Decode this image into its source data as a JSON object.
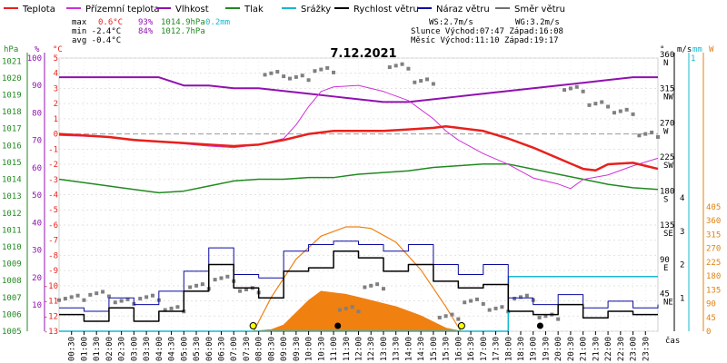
{
  "chart_data": {
    "type": "line",
    "title": "7.12.2021",
    "legend": [
      {
        "name": "Teplota",
        "color": "#e8201c"
      },
      {
        "name": "Přízemní teplota",
        "color": "#d030d8"
      },
      {
        "name": "Vlhkost",
        "color": "#9010b0"
      },
      {
        "name": "Tlak",
        "color": "#208a20"
      },
      {
        "name": "Srážky",
        "color": "#18b8d0"
      },
      {
        "name": "Rychlost větru",
        "color": "#000000"
      },
      {
        "name": "Náraz větru",
        "color": "#0a0aa0"
      },
      {
        "name": "Směr větru",
        "color": "#707070"
      }
    ],
    "stats": {
      "max": {
        "label": "max",
        "temp": "0.6°C",
        "hum": "93%",
        "press": "1014.9hPa",
        "rain": "0.2mm"
      },
      "min": {
        "label": "min -2.4°C",
        "hum": "84%",
        "press": "1012.7hPa"
      },
      "avg": {
        "label": "avg -0.4°C"
      },
      "ws": "WS:2.7m/s",
      "wg": "WG:3.2m/s",
      "sun": "Slunce Východ:07:47  Západ:16:08",
      "moon": "Měsíc  Východ:11:10  Západ:19:17"
    },
    "axes": {
      "hpa_unit": "hPa",
      "pct_unit": "%",
      "degc_unit": "°C",
      "deg_unit": "°",
      "ms_unit": "m/s",
      "mm_unit": "mm",
      "w_unit": "W",
      "xlabel": "čas",
      "hpa_ticks": [
        "1021",
        "1020",
        "1019",
        "1018",
        "1017",
        "1016",
        "1015",
        "1014",
        "1013",
        "1012",
        "1011",
        "1010",
        "1009",
        "1008",
        "1007",
        "1006",
        "1005"
      ],
      "pct_ticks": [
        "100",
        "90",
        "80",
        "70",
        "60",
        "50",
        "40",
        "30",
        "20",
        "10"
      ],
      "temp_ticks": [
        "5",
        "4",
        "3",
        "2",
        "1",
        "0",
        "-1",
        "-2",
        "-3",
        "-4",
        "-5",
        "-6",
        "-7",
        "-8",
        "-9",
        "-10",
        "-11",
        "-12",
        "-13"
      ],
      "dir_ticks": [
        "360",
        "315",
        "270",
        "225",
        "180",
        "135",
        "90",
        "45"
      ],
      "dir_labels": [
        "N",
        "NW",
        "W",
        "SW",
        "S",
        "SE",
        "E",
        "NE"
      ],
      "ms_ticks": [
        "4",
        "3",
        "2",
        "1"
      ],
      "mm_top": "1",
      "w_ticks": [
        "405",
        "360",
        "315",
        "270",
        "225",
        "180",
        "135",
        "90",
        "45",
        "0"
      ],
      "x_ticks": [
        "00:30",
        "01:00",
        "01:30",
        "02:00",
        "02:30",
        "03:00",
        "03:30",
        "04:00",
        "04:30",
        "05:00",
        "05:30",
        "06:00",
        "06:30",
        "07:00",
        "07:30",
        "08:00",
        "08:30",
        "09:00",
        "09:30",
        "10:00",
        "10:30",
        "11:00",
        "11:30",
        "12:00",
        "12:30",
        "13:00",
        "13:30",
        "14:00",
        "14:30",
        "15:00",
        "15:30",
        "16:00",
        "16:30",
        "17:00",
        "17:30",
        "18:00",
        "18:30",
        "19:00",
        "19:30",
        "20:00",
        "20:30",
        "21:00",
        "21:30",
        "22:00",
        "22:30",
        "23:00",
        "23:30"
      ],
      "temp_range": [
        -13,
        5
      ],
      "hum_range": [
        10,
        100
      ],
      "press_range": [
        1005,
        1021.5
      ],
      "dir_range": [
        0,
        360
      ],
      "ms_range": [
        0,
        4
      ],
      "w_range": [
        0,
        405
      ]
    },
    "series": {
      "temperature": [
        [
          0,
          0
        ],
        [
          1,
          -0.1
        ],
        [
          2,
          -0.2
        ],
        [
          3,
          -0.4
        ],
        [
          4,
          -0.5
        ],
        [
          5,
          -0.6
        ],
        [
          6,
          -0.7
        ],
        [
          7,
          -0.8
        ],
        [
          8,
          -0.7
        ],
        [
          9,
          -0.4
        ],
        [
          10,
          0
        ],
        [
          11,
          0.2
        ],
        [
          12,
          0.2
        ],
        [
          13,
          0.2
        ],
        [
          14,
          0.3
        ],
        [
          15,
          0.4
        ],
        [
          15.5,
          0.5
        ],
        [
          16,
          0.4
        ],
        [
          17,
          0.2
        ],
        [
          18,
          -0.3
        ],
        [
          19,
          -0.9
        ],
        [
          20,
          -1.6
        ],
        [
          21,
          -2.3
        ],
        [
          21.5,
          -2.4
        ],
        [
          22,
          -2.0
        ],
        [
          23,
          -1.9
        ],
        [
          23.5,
          -2.1
        ],
        [
          24,
          -2.3
        ]
      ],
      "ground_temperature": [
        [
          0,
          -0.1
        ],
        [
          2,
          -0.2
        ],
        [
          4,
          -0.5
        ],
        [
          6,
          -0.8
        ],
        [
          7,
          -0.9
        ],
        [
          8,
          -0.7
        ],
        [
          9,
          -0.3
        ],
        [
          9.5,
          0.6
        ],
        [
          10,
          1.8
        ],
        [
          10.5,
          2.8
        ],
        [
          11,
          3.1
        ],
        [
          12,
          3.2
        ],
        [
          13,
          2.8
        ],
        [
          14,
          2.2
        ],
        [
          15,
          1.0
        ],
        [
          15.5,
          0.2
        ],
        [
          16,
          -0.4
        ],
        [
          17,
          -1.3
        ],
        [
          18,
          -2.0
        ],
        [
          19,
          -2.9
        ],
        [
          20,
          -3.3
        ],
        [
          20.5,
          -3.6
        ],
        [
          21,
          -3.0
        ],
        [
          22,
          -2.7
        ],
        [
          23,
          -2.1
        ],
        [
          24,
          -1.6
        ]
      ],
      "humidity": [
        [
          0,
          93
        ],
        [
          4,
          93
        ],
        [
          5,
          90
        ],
        [
          6,
          90
        ],
        [
          7,
          89
        ],
        [
          8,
          89
        ],
        [
          9,
          88
        ],
        [
          10,
          87
        ],
        [
          11,
          86
        ],
        [
          12,
          85
        ],
        [
          13,
          84
        ],
        [
          14,
          84
        ],
        [
          15,
          85
        ],
        [
          16,
          86
        ],
        [
          17,
          87
        ],
        [
          18,
          88
        ],
        [
          19,
          89
        ],
        [
          20,
          90
        ],
        [
          21,
          91
        ],
        [
          22,
          92
        ],
        [
          23,
          93
        ],
        [
          24,
          93
        ]
      ],
      "pressure": [
        [
          0,
          1014.0
        ],
        [
          1,
          1013.8
        ],
        [
          2,
          1013.6
        ],
        [
          3,
          1013.4
        ],
        [
          4,
          1013.2
        ],
        [
          5,
          1013.3
        ],
        [
          6,
          1013.6
        ],
        [
          7,
          1013.9
        ],
        [
          8,
          1014.0
        ],
        [
          9,
          1014.0
        ],
        [
          10,
          1014.1
        ],
        [
          11,
          1014.1
        ],
        [
          12,
          1014.3
        ],
        [
          13,
          1014.4
        ],
        [
          14,
          1014.5
        ],
        [
          15,
          1014.7
        ],
        [
          16,
          1014.8
        ],
        [
          17,
          1014.9
        ],
        [
          18,
          1014.9
        ],
        [
          19,
          1014.6
        ],
        [
          20,
          1014.3
        ],
        [
          21,
          1014.0
        ],
        [
          22,
          1013.7
        ],
        [
          23,
          1013.5
        ],
        [
          24,
          1013.4
        ]
      ],
      "precipitation": [
        [
          0,
          0
        ],
        [
          18,
          0
        ],
        [
          18.01,
          0.2
        ],
        [
          24,
          0.2
        ]
      ],
      "wind_speed": [
        [
          0,
          0.5
        ],
        [
          1,
          0.3
        ],
        [
          2,
          0.7
        ],
        [
          3,
          0.3
        ],
        [
          4,
          0.6
        ],
        [
          5,
          1.2
        ],
        [
          6,
          2.0
        ],
        [
          7,
          1.3
        ],
        [
          8,
          1.0
        ],
        [
          9,
          1.8
        ],
        [
          10,
          1.9
        ],
        [
          11,
          2.4
        ],
        [
          12,
          2.2
        ],
        [
          13,
          1.8
        ],
        [
          14,
          2.0
        ],
        [
          15,
          1.5
        ],
        [
          16,
          1.3
        ],
        [
          17,
          1.4
        ],
        [
          18,
          0.6
        ],
        [
          19,
          0.5
        ],
        [
          20,
          0.8
        ],
        [
          21,
          0.4
        ],
        [
          22,
          0.6
        ],
        [
          23,
          0.5
        ],
        [
          24,
          0.5
        ]
      ],
      "wind_gust": [
        [
          0,
          0.7
        ],
        [
          1,
          0.6
        ],
        [
          2,
          1.0
        ],
        [
          3,
          0.8
        ],
        [
          4,
          1.2
        ],
        [
          5,
          1.8
        ],
        [
          6,
          2.5
        ],
        [
          7,
          1.7
        ],
        [
          8,
          1.6
        ],
        [
          9,
          2.4
        ],
        [
          10,
          2.6
        ],
        [
          11,
          2.7
        ],
        [
          12,
          2.6
        ],
        [
          13,
          2.4
        ],
        [
          14,
          2.6
        ],
        [
          15,
          2.0
        ],
        [
          16,
          1.7
        ],
        [
          17,
          2.0
        ],
        [
          18,
          1.0
        ],
        [
          19,
          0.8
        ],
        [
          20,
          1.1
        ],
        [
          21,
          0.7
        ],
        [
          22,
          0.9
        ],
        [
          23,
          0.7
        ],
        [
          24,
          0.8
        ]
      ],
      "wind_direction": [
        [
          0,
          45
        ],
        [
          1,
          50
        ],
        [
          2,
          40
        ],
        [
          3,
          45
        ],
        [
          4,
          30
        ],
        [
          5,
          60
        ],
        [
          6,
          70
        ],
        [
          7,
          55
        ],
        [
          8,
          340
        ],
        [
          9,
          335
        ],
        [
          10,
          345
        ],
        [
          11,
          30
        ],
        [
          12,
          60
        ],
        [
          13,
          350
        ],
        [
          14,
          330
        ],
        [
          15,
          20
        ],
        [
          16,
          40
        ],
        [
          17,
          30
        ],
        [
          18,
          45
        ],
        [
          19,
          20
        ],
        [
          20,
          320
        ],
        [
          21,
          300
        ],
        [
          22,
          290
        ],
        [
          23,
          260
        ],
        [
          24,
          250
        ]
      ],
      "solar_radiation": [
        [
          7.8,
          0
        ],
        [
          8.5,
          5
        ],
        [
          9,
          20
        ],
        [
          9.5,
          60
        ],
        [
          10,
          100
        ],
        [
          10.5,
          130
        ],
        [
          11,
          125
        ],
        [
          11.5,
          120
        ],
        [
          12,
          110
        ],
        [
          12.5,
          100
        ],
        [
          13,
          90
        ],
        [
          13.5,
          80
        ],
        [
          14,
          65
        ],
        [
          14.5,
          50
        ],
        [
          15,
          30
        ],
        [
          15.5,
          10
        ],
        [
          16.1,
          0
        ]
      ],
      "solar_theoretical": [
        [
          7.8,
          0
        ],
        [
          8.5,
          110
        ],
        [
          9.5,
          235
        ],
        [
          10.5,
          310
        ],
        [
          11.5,
          340
        ],
        [
          12,
          340
        ],
        [
          12.5,
          335
        ],
        [
          13.5,
          290
        ],
        [
          14.5,
          200
        ],
        [
          15.5,
          80
        ],
        [
          16.1,
          0
        ]
      ]
    },
    "markers": {
      "sunrise": 7.78,
      "sunset": 16.13,
      "moonrise": 11.17,
      "moonset": 19.28
    }
  }
}
